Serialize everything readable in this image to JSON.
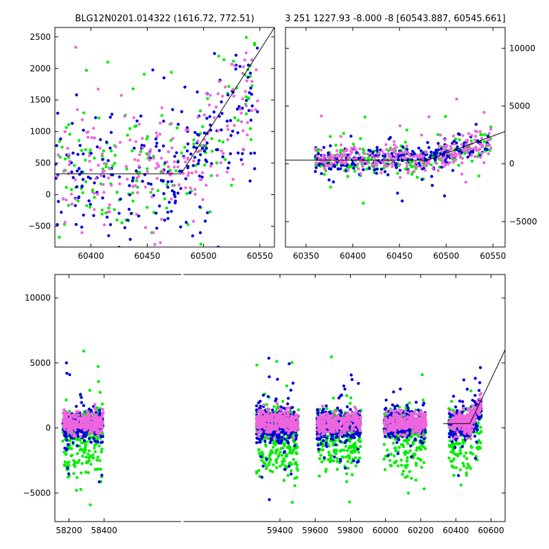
{
  "figure": {
    "title_left": "BLG12N0201.014322 (1616.72, 772.51)",
    "title_right": "3 251 1227.93 -8.000 -8 [60543.887, 60545.661]"
  },
  "colors": {
    "series_a": "#00ee00",
    "series_b": "#0000dd",
    "series_c": "#ee66dd",
    "model": "#000000"
  },
  "chart_data": [
    {
      "id": "top-left",
      "type": "scatter",
      "title": "BLG12N0201.014322 (1616.72, 772.51)",
      "xlim": [
        60368,
        60563
      ],
      "ylim": [
        -830,
        2650
      ],
      "xticks": [
        60400,
        60450,
        60500,
        60550
      ],
      "xtick_labels": [
        "60400",
        "60450",
        "60500",
        "60550"
      ],
      "yticks": [
        -500,
        0,
        500,
        1000,
        1500,
        2000,
        2500
      ],
      "ytick_labels": [
        "−500",
        "0",
        "500",
        "1000",
        "1500",
        "2000",
        "2500"
      ],
      "yaxis_side": "left",
      "model": {
        "x": [
          60368,
          60480,
          60563
        ],
        "y": [
          330,
          330,
          2650
        ]
      },
      "scatter_gen": {
        "seed": 11,
        "mode": "zoom",
        "points": 620,
        "xrange": [
          60368,
          60548
        ],
        "base_y": 340,
        "sigma": 520,
        "rise_start": 60480,
        "rise_slope": 22,
        "max_x": 60548
      }
    },
    {
      "id": "top-right",
      "type": "scatter",
      "title": "3 251 1227.93 -8.000 -8 [60543.887, 60545.661]",
      "xlim": [
        60328,
        60563
      ],
      "ylim": [
        -7200,
        11800
      ],
      "xticks": [
        60350,
        60400,
        60450,
        60500,
        60550
      ],
      "xtick_labels": [
        "60350",
        "60400",
        "60450",
        "60500",
        "60550"
      ],
      "yticks": [
        -5000,
        0,
        5000,
        10000
      ],
      "ytick_labels": [
        "−5000",
        "0",
        "5000",
        "10000"
      ],
      "yaxis_side": "right",
      "model": {
        "x": [
          60328,
          60480,
          60563
        ],
        "y": [
          330,
          330,
          2800
        ]
      },
      "scatter_gen": {
        "seed": 23,
        "mode": "zoom",
        "points": 760,
        "xrange": [
          60360,
          60548
        ],
        "base_y": 340,
        "sigma": 600,
        "rise_start": 60480,
        "rise_slope": 22,
        "max_x": 60548
      }
    },
    {
      "id": "bottom",
      "type": "scatter",
      "xlim": [
        58120,
        60680
      ],
      "ylim": [
        -7200,
        11800
      ],
      "xticks": [
        58200,
        58400,
        59400,
        59600,
        59800,
        60000,
        60200,
        60400,
        60600
      ],
      "xtick_labels": [
        "58200",
        "58400",
        "59400",
        "59600",
        "59800",
        "60000",
        "60200",
        "60400",
        "60600"
      ],
      "yticks": [
        -5000,
        0,
        5000,
        10000
      ],
      "ytick_labels": [
        "−5000",
        "0",
        "5000",
        "10000"
      ],
      "yaxis_side": "left",
      "axis_break": [
        58440,
        59250
      ],
      "model": {
        "x": [
          60328,
          60480,
          60680
        ],
        "y": [
          330,
          330,
          6000
        ]
      },
      "seasons": [
        {
          "x0": 58165,
          "x1": 58395,
          "n": 900
        },
        {
          "x0": 59265,
          "x1": 59505,
          "n": 1100
        },
        {
          "x0": 59610,
          "x1": 59860,
          "n": 1000
        },
        {
          "x0": 59990,
          "x1": 60230,
          "n": 900
        },
        {
          "x0": 60360,
          "x1": 60545,
          "n": 700
        }
      ],
      "scatter_gen": {
        "seed": 37,
        "mode": "seasons",
        "base_y": 200,
        "sigma": 600,
        "rise_start": 60480,
        "rise_slope": 22
      }
    }
  ]
}
